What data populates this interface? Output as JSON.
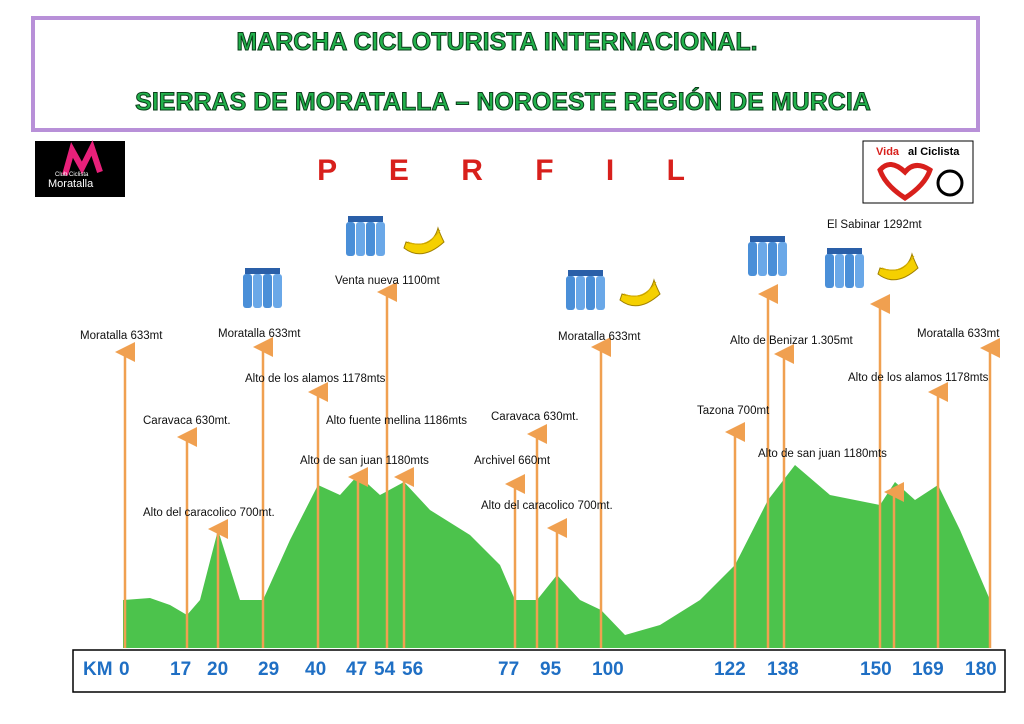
{
  "header": {
    "title_line1": "MARCHA CICLOTURISTA INTERNACIONAL.",
    "title_line2": "SIERRAS DE MORATALLA – NOROESTE REGIÓN DE MURCIA"
  },
  "subtitle": "P E R F I L",
  "logos": {
    "left_small": "Club Ciclista",
    "left": "Moratalla",
    "right_1": "Vida",
    "right_2": "al Ciclista"
  },
  "waypoints": [
    "Moratalla 633mt",
    "Caravaca 630mt.",
    "Alto del caracolico 700mt.",
    "Moratalla 633mt",
    "Alto de los alamos 1178mts",
    "Venta nueva 1100mt",
    "Alto fuente mellina 1186mts",
    "Alto de san juan 1180mts",
    "Caravaca 630mt.",
    "Archivel 660mt",
    "Alto del caracolico 700mt.",
    "Moratalla 633mt",
    "Tazona 700mt",
    "Alto de Benizar 1.305mt",
    "Alto de san juan 1180mts",
    "El Sabinar 1292mt",
    "Alto de los alamos 1178mts",
    "Moratalla 633mt"
  ],
  "km_axis": {
    "label": "KM",
    "marks": [
      "0",
      "17",
      "20",
      "29",
      "40",
      "47",
      "54",
      "56",
      "77",
      "95",
      "100",
      "122",
      "138",
      "150",
      "169",
      "180"
    ]
  }
}
